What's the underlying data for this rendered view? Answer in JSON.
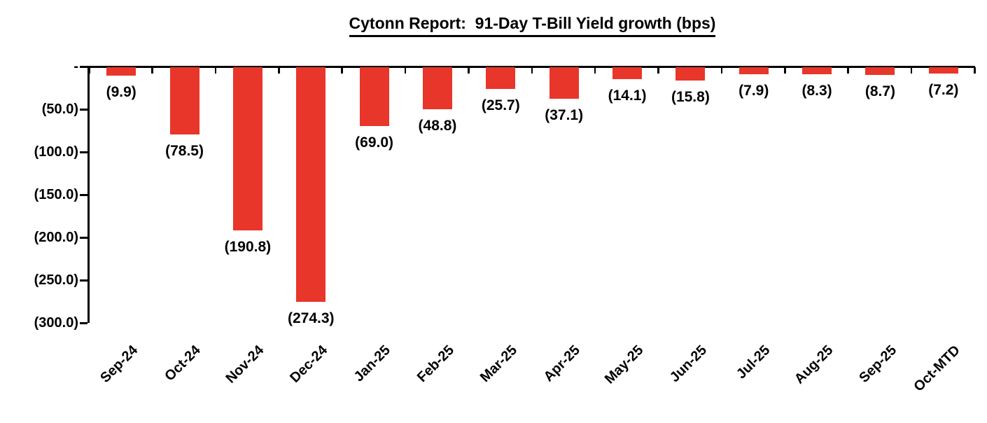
{
  "chart_data": {
    "type": "bar",
    "title": "Cytonn Report:  91-Day T-Bill Yield growth (bps)",
    "categories": [
      "Sep-24",
      "Oct-24",
      "Nov-24",
      "Dec-24",
      "Jan-25",
      "Feb-25",
      "Mar-25",
      "Apr-25",
      "May-25",
      "Jun-25",
      "Jul-25",
      "Aug-25",
      "Sep-25",
      "Oct-MTD"
    ],
    "values": [
      -9.9,
      -78.5,
      -190.8,
      -274.3,
      -69.0,
      -48.8,
      -25.7,
      -37.1,
      -14.1,
      -15.8,
      -7.9,
      -8.3,
      -8.7,
      -7.2
    ],
    "data_labels": [
      "(9.9)",
      "(78.5)",
      "(190.8)",
      "(274.3)",
      "(69.0)",
      "(48.8)",
      "(25.7)",
      "(37.1)",
      "(14.1)",
      "(15.8)",
      "(7.9)",
      "(8.3)",
      "(8.7)",
      "(7.2)"
    ],
    "y_axis": {
      "tick_labels": [
        "-",
        "(50.0)",
        "(100.0)",
        "(150.0)",
        "(200.0)",
        "(250.0)",
        "(300.0)"
      ],
      "tick_values": [
        0,
        -50,
        -100,
        -150,
        -200,
        -250,
        -300
      ],
      "range": [
        -300,
        0
      ]
    },
    "xlabel": "",
    "ylabel": "",
    "grid": false,
    "legend": false,
    "bar_color": "#E8362A",
    "axis_color": "#000000",
    "text_color": "#000000"
  }
}
